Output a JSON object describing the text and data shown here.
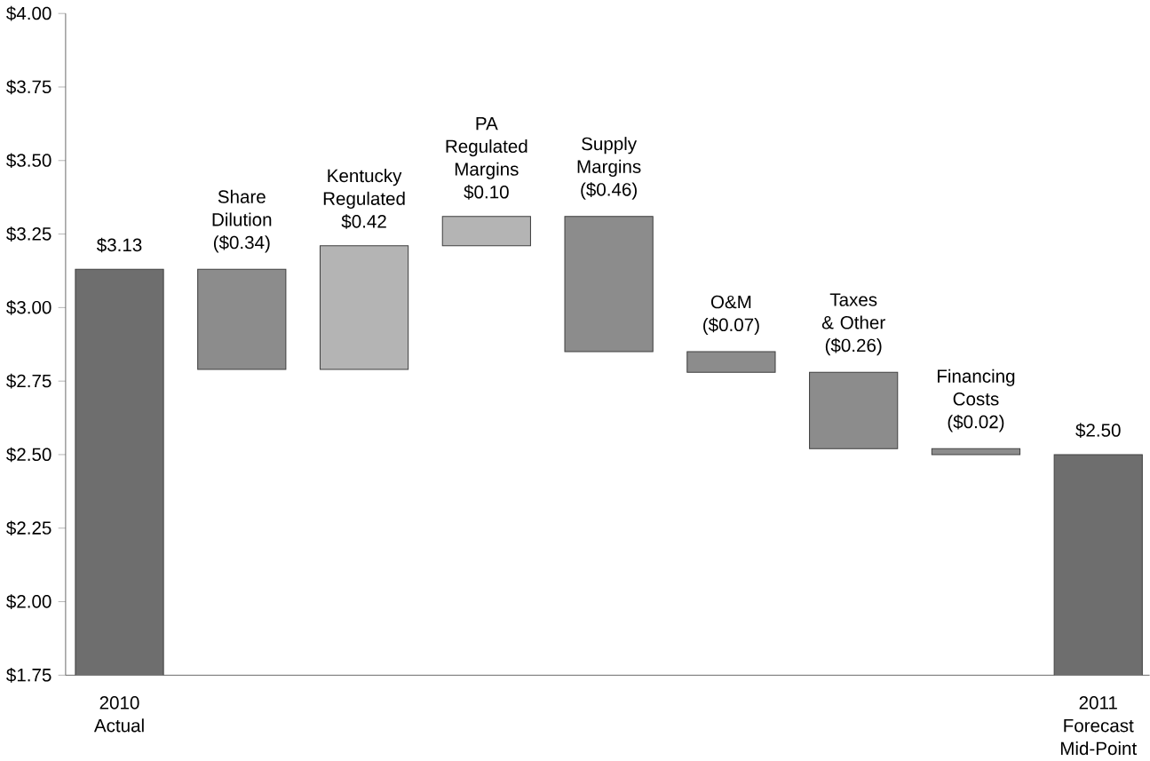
{
  "chart_data": {
    "type": "bar",
    "categories": [
      "2010 Actual",
      null,
      null,
      null,
      null,
      null,
      null,
      null,
      "2011 Forecast Mid-Point"
    ],
    "values": [
      3.13,
      -0.34,
      0.42,
      0.1,
      -0.46,
      -0.07,
      -0.26,
      -0.02,
      2.5
    ],
    "base": [
      null,
      3.13,
      2.79,
      3.21,
      3.31,
      2.85,
      2.78,
      2.52,
      null
    ],
    "colors": [
      "#6e6e6e",
      "#8c8c8c",
      "#b4b4b4",
      "#b4b4b4",
      "#8c8c8c",
      "#8c8c8c",
      "#8c8c8c",
      "#8c8c8c",
      "#6e6e6e"
    ],
    "value_labels": [
      "$3.13",
      "Share Dilution ($0.34)",
      "Kentucky Regulated $0.42",
      "PA Regulated Margins $0.10",
      "Supply Margins ($0.46)",
      "O&M ($0.07)",
      "Taxes & Other ($0.26)",
      "Financing Costs ($0.02)",
      "$2.50"
    ],
    "ylim": [
      1.75,
      4.0
    ],
    "yticks": [
      {
        "value": 1.75,
        "label": "$1.75"
      },
      {
        "value": 2.0,
        "label": "$2.00"
      },
      {
        "value": 2.25,
        "label": "$2.25"
      },
      {
        "value": 2.5,
        "label": "$2.50"
      },
      {
        "value": 2.75,
        "label": "$2.75"
      },
      {
        "value": 3.0,
        "label": "$3.00"
      },
      {
        "value": 3.25,
        "label": "$3.25"
      },
      {
        "value": 3.5,
        "label": "$3.50"
      },
      {
        "value": 3.75,
        "label": "$3.75"
      },
      {
        "value": 4.0,
        "label": "$4.00"
      }
    ]
  }
}
